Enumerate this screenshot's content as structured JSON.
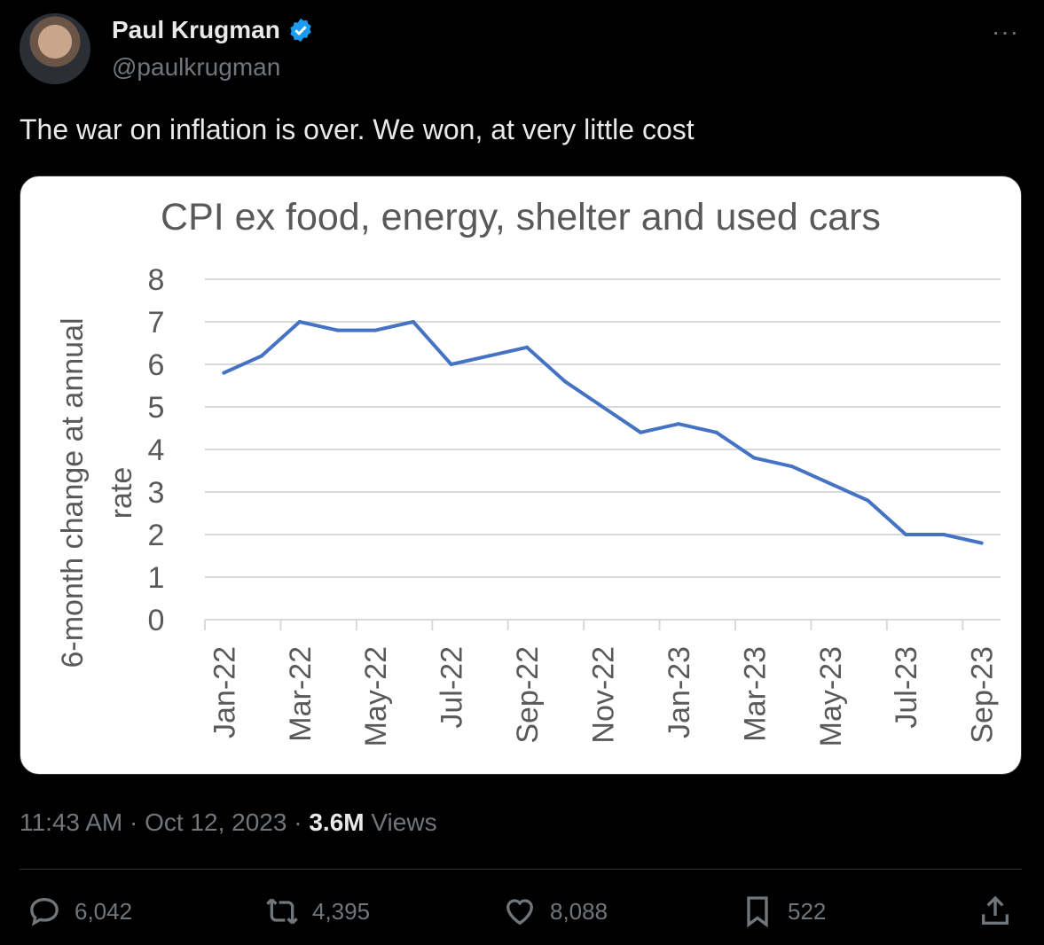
{
  "author": {
    "name": "Paul Krugman",
    "handle": "@paulkrugman",
    "verified": true
  },
  "more_label": "···",
  "tweet_text": "The war on inflation is over. We won, at very little cost",
  "meta": {
    "time": "11:43 AM",
    "date": "Oct 12, 2023",
    "views_count": "3.6M",
    "views_label": "Views",
    "sep": "·"
  },
  "actions": {
    "replies": "6,042",
    "retweets": "4,395",
    "likes": "8,088",
    "bookmarks": "522"
  },
  "colors": {
    "line": "#4472c4",
    "verified": "#1d9bf0"
  },
  "chart_data": {
    "type": "line",
    "title": "CPI ex food, energy, shelter and used cars",
    "ylabel_lines": [
      "6-month change at annual",
      "rate"
    ],
    "xlabel": "",
    "ylim": [
      0,
      8
    ],
    "yticks": [
      "0",
      "1",
      "2",
      "3",
      "4",
      "5",
      "6",
      "7",
      "8"
    ],
    "categories": [
      "Jan-22",
      "Feb-22",
      "Mar-22",
      "Apr-22",
      "May-22",
      "Jun-22",
      "Jul-22",
      "Aug-22",
      "Sep-22",
      "Oct-22",
      "Nov-22",
      "Dec-22",
      "Jan-23",
      "Feb-23",
      "Mar-23",
      "Apr-23",
      "May-23",
      "Jun-23",
      "Jul-23",
      "Aug-23",
      "Sep-23"
    ],
    "xtick_labels": [
      "Jan-22",
      "Mar-22",
      "May-22",
      "Jul-22",
      "Sep-22",
      "Nov-22",
      "Jan-23",
      "Mar-23",
      "May-23",
      "Jul-23",
      "Sep-23"
    ],
    "values": [
      5.8,
      6.2,
      7.0,
      6.8,
      6.8,
      7.0,
      6.0,
      6.2,
      6.4,
      5.6,
      5.0,
      4.4,
      4.6,
      4.4,
      3.8,
      3.6,
      3.2,
      2.8,
      2.0,
      2.0,
      1.8
    ],
    "grid": true,
    "legend": "none"
  }
}
